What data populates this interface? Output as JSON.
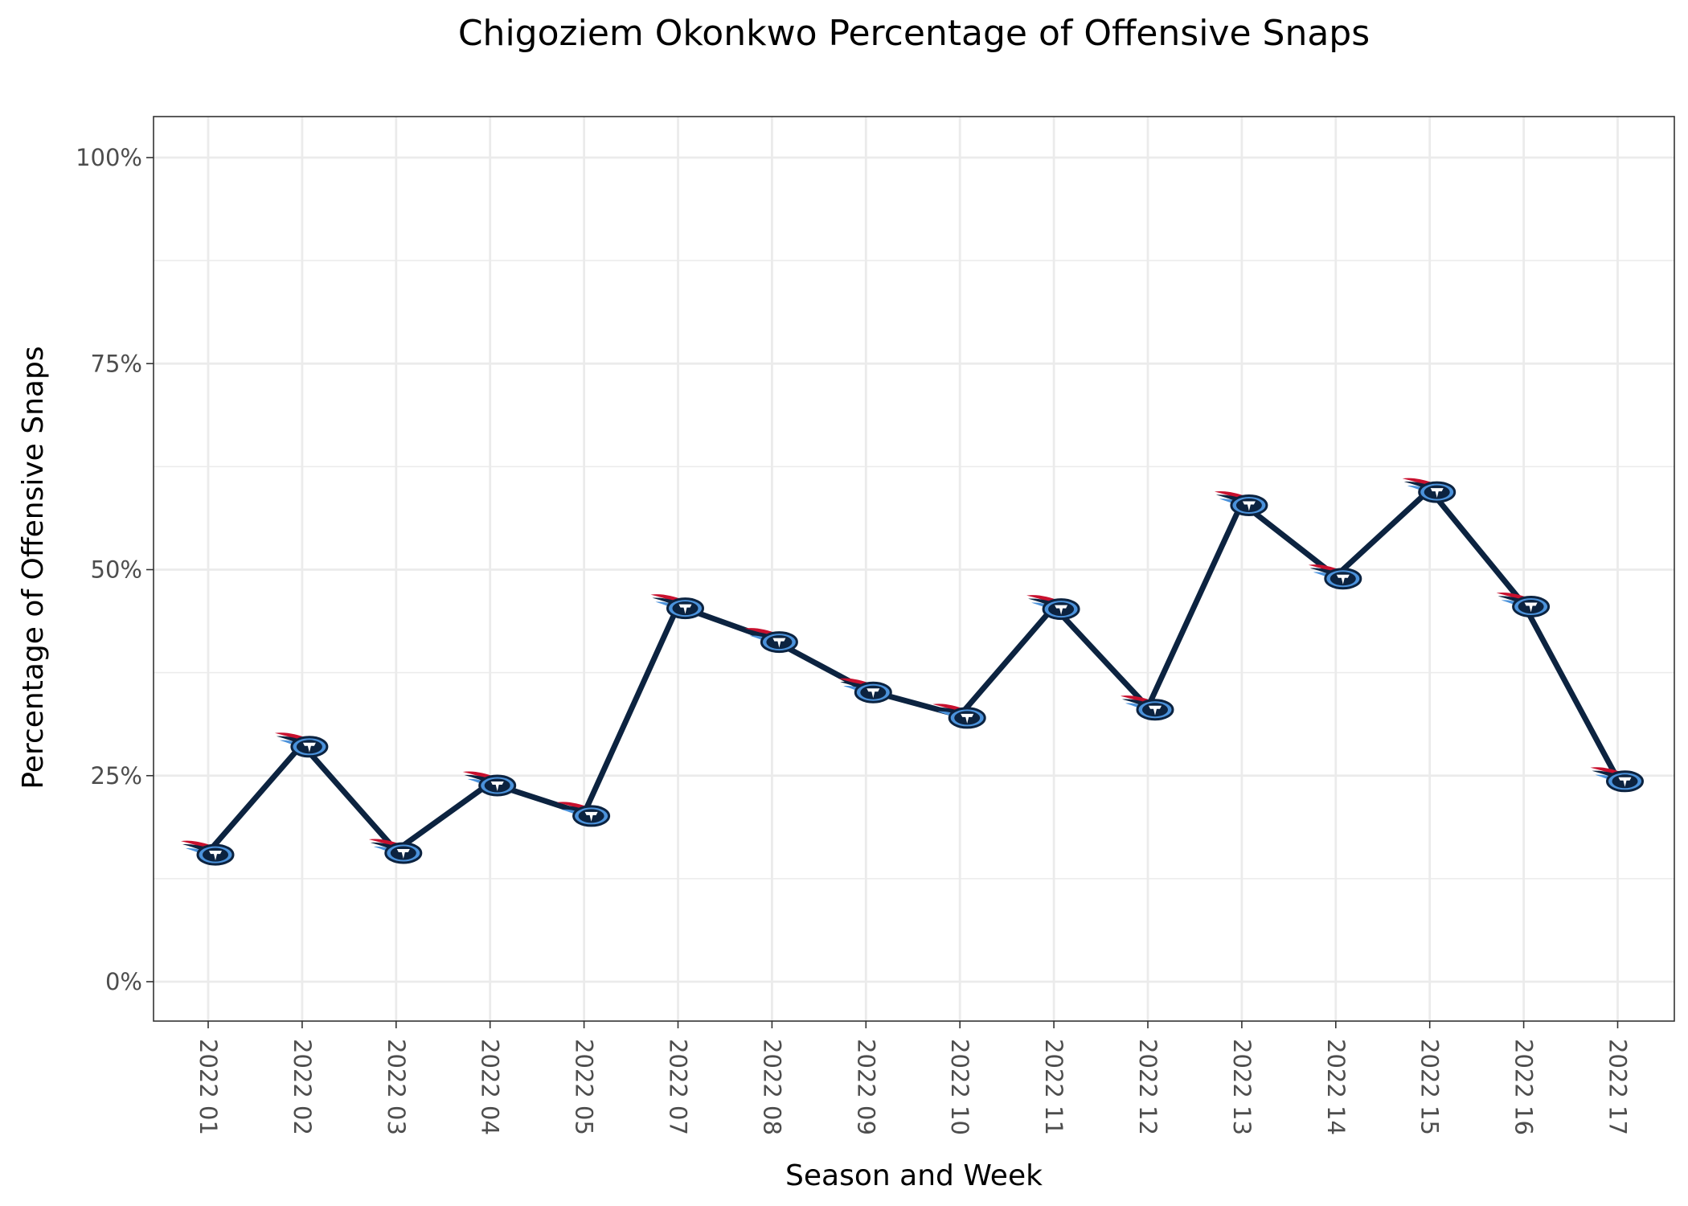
{
  "chart_data": {
    "type": "line",
    "title": "Chigoziem Okonkwo Percentage of Offensive Snaps",
    "xlabel": "Season and Week",
    "ylabel": "Percentage of Offensive Snaps",
    "categories": [
      "2022 01",
      "2022 02",
      "2022 03",
      "2022 04",
      "2022 05",
      "2022 07",
      "2022 08",
      "2022 09",
      "2022 10",
      "2022 11",
      "2022 12",
      "2022 13",
      "2022 14",
      "2022 15",
      "2022 16",
      "2022 17"
    ],
    "values": [
      15.7,
      28.8,
      15.9,
      24.1,
      20.4,
      45.6,
      41.5,
      35.4,
      32.3,
      45.5,
      33.3,
      58.1,
      49.2,
      59.7,
      45.8,
      24.6
    ],
    "ylim": [
      -4.8,
      105
    ],
    "yticks": [
      0,
      25,
      50,
      75,
      100
    ],
    "ytick_labels": [
      "0%",
      "25%",
      "50%",
      "75%",
      "100%"
    ],
    "grid": true,
    "line_color": "#0c2340",
    "marker": "tennessee-titans-logo",
    "marker_colors": {
      "navy": "#0c2340",
      "light_blue": "#4b92db",
      "red": "#c8102e",
      "white": "#ffffff"
    }
  }
}
